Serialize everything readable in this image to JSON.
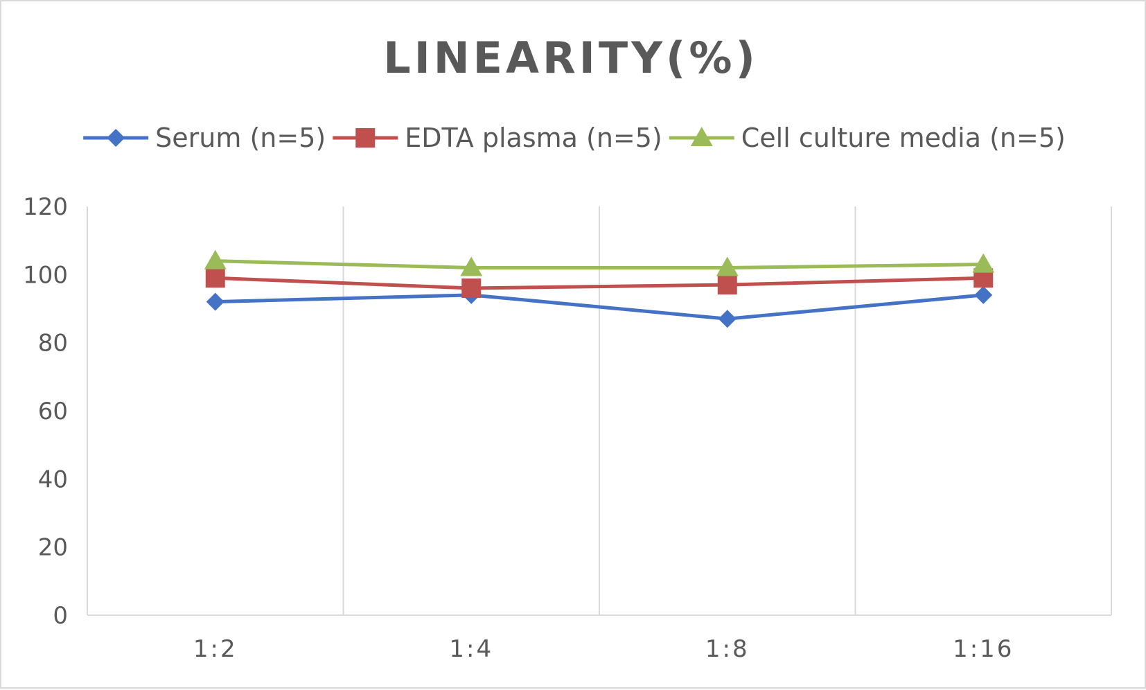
{
  "chart_data": {
    "type": "line",
    "title": "LINEARITY(%)",
    "xlabel": "",
    "ylabel": "",
    "categories": [
      "1:2",
      "1:4",
      "1:8",
      "1:16"
    ],
    "ylim": [
      0,
      120
    ],
    "yticks": [
      0,
      20,
      40,
      60,
      80,
      100,
      120
    ],
    "grid": "vertical",
    "legend_position": "top",
    "series": [
      {
        "name": "Serum (n=5)",
        "values": [
          92,
          94,
          87,
          94
        ],
        "color": "#4472c4",
        "marker": "diamond"
      },
      {
        "name": "EDTA plasma (n=5)",
        "values": [
          99,
          96,
          97,
          99
        ],
        "color": "#c0504d",
        "marker": "square"
      },
      {
        "name": "Cell culture media (n=5)",
        "values": [
          104,
          102,
          102,
          103
        ],
        "color": "#9bbb59",
        "marker": "triangle"
      }
    ]
  }
}
